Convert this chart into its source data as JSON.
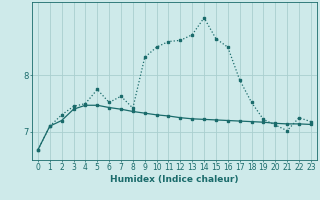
{
  "xlabel": "Humidex (Indice chaleur)",
  "background_color": "#ceeaea",
  "grid_color": "#aacfcf",
  "line_color": "#1a6b6b",
  "x_values": [
    0,
    1,
    2,
    3,
    4,
    5,
    6,
    7,
    8,
    9,
    10,
    11,
    12,
    13,
    14,
    15,
    16,
    17,
    18,
    19,
    20,
    21,
    22,
    23
  ],
  "y1_values": [
    6.68,
    7.1,
    7.2,
    7.4,
    7.47,
    7.47,
    7.43,
    7.4,
    7.36,
    7.33,
    7.3,
    7.28,
    7.25,
    7.23,
    7.22,
    7.21,
    7.2,
    7.19,
    7.18,
    7.17,
    7.15,
    7.14,
    7.14,
    7.13
  ],
  "y2_values": [
    6.68,
    7.1,
    7.3,
    7.45,
    7.5,
    7.75,
    7.52,
    7.63,
    7.42,
    8.32,
    8.5,
    8.6,
    8.62,
    8.72,
    9.02,
    8.65,
    8.5,
    7.92,
    7.52,
    7.22,
    7.12,
    7.02,
    7.25,
    7.18
  ],
  "ylim": [
    6.5,
    9.3
  ],
  "yticks": [
    7,
    8
  ],
  "xlim": [
    -0.5,
    23.5
  ],
  "tick_fontsize": 5.5,
  "xlabel_fontsize": 6.5
}
